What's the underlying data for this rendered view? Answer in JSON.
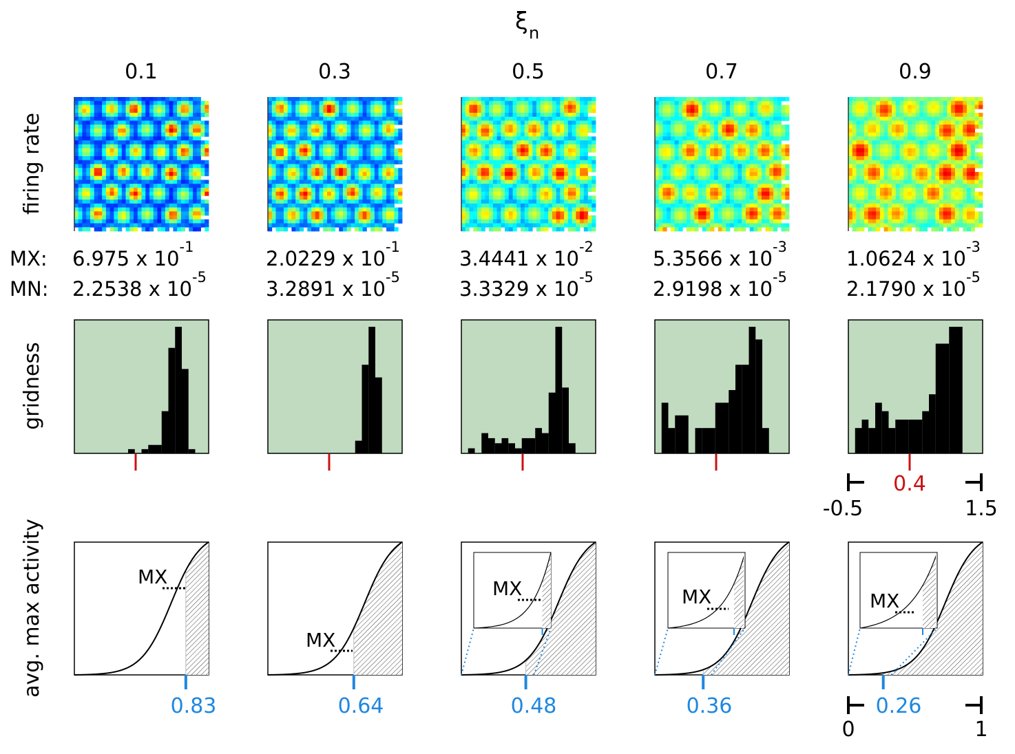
{
  "header": {
    "symbol": "ξ",
    "subscript": "n"
  },
  "row_labels": {
    "firing_rate": "firing rate",
    "gridness": "gridness",
    "activity": "avg. max activity"
  },
  "stat_labels": {
    "max": "MX:",
    "min": "MN:"
  },
  "colors": {
    "histogram_bg": "#c0dbc0",
    "bars": "#000000",
    "gridness_marker": "#cc1111",
    "threshold": "#1f87e0"
  },
  "heatmap": {
    "colormap": "jet",
    "background": "#00008f"
  },
  "columns": [
    {
      "xi": "0.1",
      "mx_mant": "6.975 x 10",
      "mx_exp": "-1",
      "mn_mant": "2.2538 x 10",
      "mn_exp": "-5",
      "threshold_label": "0.83",
      "threshold": 0.83,
      "gridness_marker": 0.4
    },
    {
      "xi": "0.3",
      "mx_mant": "2.0229 x 10",
      "mx_exp": "-1",
      "mn_mant": "3.2891 x 10",
      "mn_exp": "-5",
      "threshold_label": "0.64",
      "threshold": 0.64,
      "gridness_marker": 0.4
    },
    {
      "xi": "0.5",
      "mx_mant": "3.4441 x 10",
      "mx_exp": "-2",
      "mn_mant": "3.3329 x 10",
      "mn_exp": "-5",
      "threshold_label": "0.48",
      "threshold": 0.48,
      "gridness_marker": 0.4
    },
    {
      "xi": "0.7",
      "mx_mant": "5.3566 x 10",
      "mx_exp": "-3",
      "mn_mant": "2.9198 x 10",
      "mn_exp": "-5",
      "threshold_label": "0.36",
      "threshold": 0.36,
      "gridness_marker": 0.4
    },
    {
      "xi": "0.9",
      "mx_mant": "1.0624 x 10",
      "mx_exp": "-3",
      "mn_mant": "2.1790 x 10",
      "mn_exp": "-5",
      "threshold_label": "0.26",
      "threshold": 0.26,
      "gridness_marker": 0.4
    }
  ],
  "gridness_axis": {
    "min_label": "-0.5",
    "max_label": "1.5",
    "marker_label": "0.4"
  },
  "activity_axis": {
    "min_label": "0",
    "max_label": "1"
  },
  "curve_label": "MX",
  "chart_data": [
    {
      "type": "bar",
      "name": "gridness histograms",
      "xlim": [
        -0.5,
        1.5
      ],
      "bin_edges_start": -0.5,
      "bin_width": 0.1,
      "series": [
        {
          "name": "0.1",
          "values": [
            0,
            0,
            0,
            0,
            0,
            0,
            0,
            0,
            1,
            0,
            1,
            2,
            2,
            10,
            25,
            30,
            20,
            1,
            0,
            0
          ]
        },
        {
          "name": "0.3",
          "values": [
            0,
            0,
            0,
            0,
            0,
            0,
            0,
            0,
            0,
            0,
            0,
            0,
            0,
            2,
            14,
            20,
            12,
            0,
            0,
            0
          ]
        },
        {
          "name": "0.5",
          "values": [
            0,
            1,
            0,
            4,
            3,
            2,
            3,
            2,
            1,
            3,
            3,
            5,
            4,
            12,
            25,
            13,
            2,
            0,
            0,
            0
          ]
        },
        {
          "name": "0.7",
          "values": [
            0,
            4,
            2,
            3,
            3,
            0,
            2,
            2,
            2,
            4,
            4,
            5,
            7,
            7,
            10,
            9,
            2,
            0,
            0,
            0
          ]
        },
        {
          "name": "0.9",
          "values": [
            0,
            3,
            4,
            3,
            6,
            5,
            3,
            4,
            4,
            4,
            4,
            5,
            7,
            13,
            13,
            15,
            15,
            0,
            0,
            0
          ]
        }
      ]
    },
    {
      "type": "area",
      "name": "avg. max activity curves",
      "xlim": [
        0,
        1
      ],
      "ylim": [
        0,
        1
      ],
      "curve": "sigmoid",
      "shaded_region": "x > threshold",
      "thresholds": [
        0.83,
        0.64,
        0.48,
        0.36,
        0.26
      ]
    }
  ]
}
